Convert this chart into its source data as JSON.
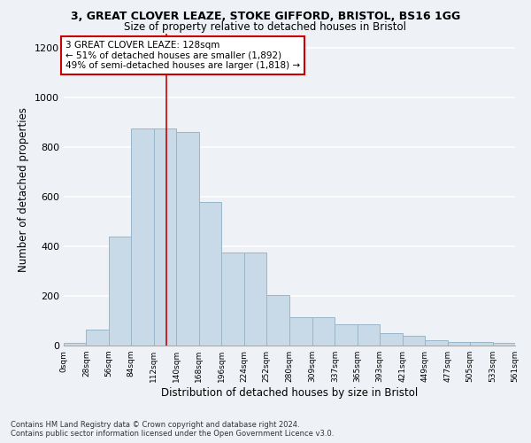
{
  "title_line1": "3, GREAT CLOVER LEAZE, STOKE GIFFORD, BRISTOL, BS16 1GG",
  "title_line2": "Size of property relative to detached houses in Bristol",
  "xlabel": "Distribution of detached houses by size in Bristol",
  "ylabel": "Number of detached properties",
  "bins": [
    0,
    28,
    56,
    84,
    112,
    140,
    168,
    196,
    224,
    252,
    280,
    309,
    337,
    365,
    393,
    421,
    449,
    477,
    505,
    533,
    561
  ],
  "counts": [
    10,
    65,
    440,
    875,
    875,
    860,
    580,
    375,
    375,
    205,
    115,
    115,
    85,
    85,
    50,
    40,
    20,
    15,
    15,
    10
  ],
  "bar_color": "#c8d9e8",
  "bar_edge_color": "#9ab4c8",
  "vline_x": 128,
  "vline_color": "#cc0000",
  "annotation_text": "3 GREAT CLOVER LEAZE: 128sqm\n← 51% of detached houses are smaller (1,892)\n49% of semi-detached houses are larger (1,818) →",
  "annotation_box_color": "#ffffff",
  "annotation_box_edge_color": "#cc0000",
  "ylim": [
    0,
    1260
  ],
  "yticks": [
    0,
    200,
    400,
    600,
    800,
    1000,
    1200
  ],
  "tick_labels": [
    "0sqm",
    "28sqm",
    "56sqm",
    "84sqm",
    "112sqm",
    "140sqm",
    "168sqm",
    "196sqm",
    "224sqm",
    "252sqm",
    "280sqm",
    "309sqm",
    "337sqm",
    "365sqm",
    "393sqm",
    "421sqm",
    "449sqm",
    "477sqm",
    "505sqm",
    "533sqm",
    "561sqm"
  ],
  "footer_line1": "Contains HM Land Registry data © Crown copyright and database right 2024.",
  "footer_line2": "Contains public sector information licensed under the Open Government Licence v3.0.",
  "background_color": "#eef2f7",
  "grid_color": "#ffffff",
  "title1_fontsize": 9.0,
  "title2_fontsize": 8.5,
  "ylabel_fontsize": 8.5,
  "xlabel_fontsize": 8.5,
  "ytick_fontsize": 8.0,
  "xtick_fontsize": 6.5,
  "annot_fontsize": 7.5,
  "footer_fontsize": 6.0
}
